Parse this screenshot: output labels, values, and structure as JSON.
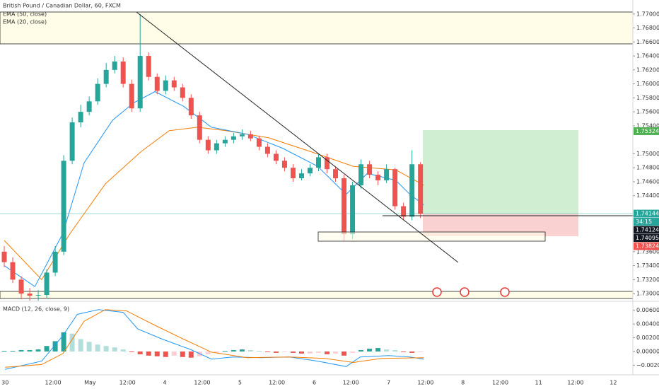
{
  "chart_data": [
    {
      "type": "candlestick",
      "title": "British Pound / Canadian Dollar, 60, FXCM",
      "up_color": "#26a69a",
      "down_color": "#ef5350",
      "open": [
        1.736,
        1.7345,
        1.732,
        1.73,
        1.7297,
        1.7298,
        1.733,
        1.736,
        1.749,
        1.7545,
        1.756,
        1.7575,
        1.76,
        1.762,
        1.7632,
        1.76,
        1.7565,
        1.764,
        1.761,
        1.759,
        1.7605,
        1.7595,
        1.758,
        1.7555,
        1.752,
        1.7505,
        1.7515,
        1.752,
        1.7525,
        1.7528,
        1.7522,
        1.751,
        1.75,
        1.749,
        1.748,
        1.7465,
        1.7472,
        1.748,
        1.7495,
        1.7478,
        1.7465,
        1.7385,
        1.7455,
        1.7485,
        1.747,
        1.7462,
        1.7478,
        1.7425,
        1.741,
        1.7485
      ],
      "high": [
        1.7368,
        1.7352,
        1.7325,
        1.7308,
        1.7305,
        1.7335,
        1.7368,
        1.7498,
        1.7552,
        1.757,
        1.7582,
        1.7608,
        1.763,
        1.764,
        1.7638,
        1.7606,
        1.77,
        1.7645,
        1.7615,
        1.7612,
        1.761,
        1.76,
        1.7585,
        1.756,
        1.7525,
        1.752,
        1.7525,
        1.753,
        1.7535,
        1.7533,
        1.7526,
        1.7515,
        1.7505,
        1.7495,
        1.7485,
        1.7478,
        1.7485,
        1.75,
        1.75,
        1.7482,
        1.747,
        1.746,
        1.7492,
        1.749,
        1.7475,
        1.7485,
        1.748,
        1.743,
        1.7505,
        1.7488
      ],
      "low": [
        1.7338,
        1.7315,
        1.7292,
        1.729,
        1.729,
        1.7294,
        1.7325,
        1.7355,
        1.7485,
        1.7538,
        1.7555,
        1.757,
        1.7595,
        1.7615,
        1.7595,
        1.756,
        1.756,
        1.7605,
        1.7585,
        1.7585,
        1.759,
        1.7575,
        1.755,
        1.7515,
        1.75,
        1.75,
        1.751,
        1.7515,
        1.752,
        1.7518,
        1.7505,
        1.7495,
        1.7485,
        1.7475,
        1.746,
        1.7462,
        1.7468,
        1.7475,
        1.7472,
        1.746,
        1.7375,
        1.7378,
        1.745,
        1.7465,
        1.7455,
        1.7458,
        1.742,
        1.7405,
        1.7405,
        1.7408
      ],
      "close": [
        1.7345,
        1.732,
        1.73,
        1.7297,
        1.7298,
        1.733,
        1.736,
        1.749,
        1.7545,
        1.756,
        1.7575,
        1.76,
        1.762,
        1.7632,
        1.76,
        1.7565,
        1.764,
        1.761,
        1.759,
        1.7605,
        1.7595,
        1.758,
        1.7555,
        1.752,
        1.7505,
        1.7515,
        1.752,
        1.7525,
        1.7528,
        1.7522,
        1.751,
        1.75,
        1.749,
        1.748,
        1.7465,
        1.7472,
        1.748,
        1.7495,
        1.7478,
        1.7465,
        1.7385,
        1.7455,
        1.7485,
        1.747,
        1.7462,
        1.7478,
        1.7425,
        1.741,
        1.7485,
        1.7414
      ],
      "series": [
        {
          "name": "EMA (50, close)",
          "color": "#f57c00",
          "x": [
            0,
            4.4,
            7.75,
            11.9,
            16.1,
            19.4,
            22.75,
            26.1,
            31.1,
            36.1,
            41.1,
            46.1,
            49.4
          ],
          "values": [
            1.7376,
            1.732,
            1.7386,
            1.7457,
            1.7503,
            1.7533,
            1.7538,
            1.7533,
            1.7523,
            1.7503,
            1.7482,
            1.7477,
            1.7455
          ]
        },
        {
          "name": "EMA (20, close)",
          "color": "#2196f3",
          "x": [
            0,
            3.6,
            6.9,
            9.4,
            12.75,
            15.25,
            17.75,
            21.1,
            24.4,
            28.6,
            32.75,
            36.9,
            40.25,
            42.75,
            46.1,
            47.75,
            49.4
          ],
          "values": [
            1.734,
            1.731,
            1.7386,
            1.7487,
            1.7548,
            1.7573,
            1.7589,
            1.7568,
            1.7538,
            1.7528,
            1.7508,
            1.7482,
            1.7442,
            1.7472,
            1.7462,
            1.7442,
            1.7427
          ]
        }
      ],
      "xlim": [
        -0.5,
        74
      ],
      "xticks": [
        {
          "value": 0.1,
          "label": "30"
        },
        {
          "value": 5.75,
          "label": "12:00"
        },
        {
          "value": 10.1,
          "label": "May"
        },
        {
          "value": 14.5,
          "label": "12:00"
        },
        {
          "value": 18.9,
          "label": "4"
        },
        {
          "value": 23.3,
          "label": "12:00"
        },
        {
          "value": 27.75,
          "label": "5"
        },
        {
          "value": 32.1,
          "label": "12:00"
        },
        {
          "value": 36.5,
          "label": "6"
        },
        {
          "value": 40.8,
          "label": "12:00"
        },
        {
          "value": 45.25,
          "label": "7"
        },
        {
          "value": 49.6,
          "label": "12:00"
        },
        {
          "value": 54,
          "label": "8"
        },
        {
          "value": 58.4,
          "label": "12:00"
        },
        {
          "value": 62.9,
          "label": "11"
        },
        {
          "value": 67.25,
          "label": "12:00"
        },
        {
          "value": 71.7,
          "label": "12"
        }
      ],
      "ylim": [
        1.729,
        1.772
      ],
      "yticks": [
        {
          "value": 1.77,
          "label": "1.77000"
        },
        {
          "value": 1.768,
          "label": "1.76800"
        },
        {
          "value": 1.766,
          "label": "1.76600"
        },
        {
          "value": 1.764,
          "label": "1.76400"
        },
        {
          "value": 1.762,
          "label": "1.76200"
        },
        {
          "value": 1.76,
          "label": "1.76000"
        },
        {
          "value": 1.758,
          "label": "1.75800"
        },
        {
          "value": 1.756,
          "label": "1.75600"
        },
        {
          "value": 1.754,
          "label": "1.75400"
        },
        {
          "value": 1.75,
          "label": "1.75000"
        },
        {
          "value": 1.748,
          "label": "1.74800"
        },
        {
          "value": 1.746,
          "label": "1.74600"
        },
        {
          "value": 1.744,
          "label": "1.74400"
        },
        {
          "value": 1.736,
          "label": "1.73600"
        },
        {
          "value": 1.734,
          "label": "1.73400"
        },
        {
          "value": 1.732,
          "label": "1.73200"
        },
        {
          "value": 1.73,
          "label": "1.73000"
        }
      ],
      "price_tags": [
        {
          "value": 1.75324,
          "label": "1.75324",
          "color": "#4caf50"
        },
        {
          "value": 1.74144,
          "label": "1.74144",
          "color": "#26a69a"
        },
        {
          "label": "34:15",
          "color": "#26a69a"
        },
        {
          "value": 1.74124,
          "label": "1.74124",
          "color": "#131722"
        },
        {
          "value": 1.74095,
          "label": "1.74095",
          "color": "#131722"
        },
        {
          "value": 1.73824,
          "label": "1.73824",
          "color": "#ef5350"
        }
      ]
    },
    {
      "type": "macd",
      "title": "MACD (12, 26, close, 9)",
      "histogram": [
        0.0001,
        0.0001,
        0.0002,
        0.0002,
        0.0003,
        0.0008,
        0.0015,
        0.0028,
        0.0026,
        0.0018,
        0.0014,
        0.001,
        0.0008,
        0.0006,
        0.0003,
        -0.0001,
        -0.0004,
        -0.0006,
        -0.0007,
        -0.0008,
        -0.0006,
        -0.0008,
        -0.0009,
        -0.0007,
        -0.0004,
        -0.0002,
        0.0001,
        0.0002,
        0.0003,
        0.0002,
        0.0001,
        -0.0001,
        -0.0002,
        -0.0001,
        -0.0002,
        -0.0003,
        -0.0003,
        -0.0002,
        -0.0004,
        -0.0003,
        -0.0006,
        -0.0002,
        0.0002,
        0.0004,
        0.0005,
        0.0003,
        0.0002,
        -0.0001,
        -0.0002,
        -0.0001
      ],
      "histogram_colors": [
        "#26a69a",
        "#b2dfdb",
        "#ffcdd2",
        "#ef5350"
      ],
      "series": [
        {
          "color": "#2196f3",
          "x": [
            0.1,
            4.4,
            6.9,
            8.6,
            11.1,
            14,
            15.7,
            18.6,
            21.9,
            24.4,
            26.9,
            30.25,
            33.6,
            36.9,
            40.25,
            41.9,
            45.25,
            47.75,
            49.4
          ],
          "values": [
            -0.0026,
            -0.0014,
            0.0023,
            0.0054,
            0.0061,
            0.0057,
            0.0033,
            0.0018,
            0.0003,
            -0.0011,
            -0.0008,
            -0.0009,
            -0.0008,
            -0.0014,
            -0.0022,
            -0.0008,
            -0.0006,
            -0.0008,
            -0.0011
          ]
        },
        {
          "color": "#f57c00",
          "x": [
            0.1,
            4.4,
            6.9,
            9.4,
            11.9,
            14.4,
            17.75,
            21.1,
            24.4,
            28.6,
            33.6,
            37.75,
            41.1,
            44.4,
            49.4
          ],
          "values": [
            -0.0023,
            -0.0019,
            -0.0003,
            0.0044,
            0.0061,
            0.0059,
            0.0038,
            0.0018,
            -0.0001,
            -0.0009,
            -0.0008,
            -0.001,
            -0.0016,
            -0.001,
            -0.0009
          ]
        }
      ],
      "ylim": [
        -0.0034,
        0.0072
      ],
      "yticks": [
        {
          "value": 0.006,
          "label": "0.00600"
        },
        {
          "value": 0.004,
          "label": "0.00400"
        },
        {
          "value": 0.002,
          "label": "0.00200"
        },
        {
          "value": 0,
          "label": "0.00000"
        },
        {
          "value": -0.002,
          "label": "−0.00200"
        }
      ]
    }
  ]
}
